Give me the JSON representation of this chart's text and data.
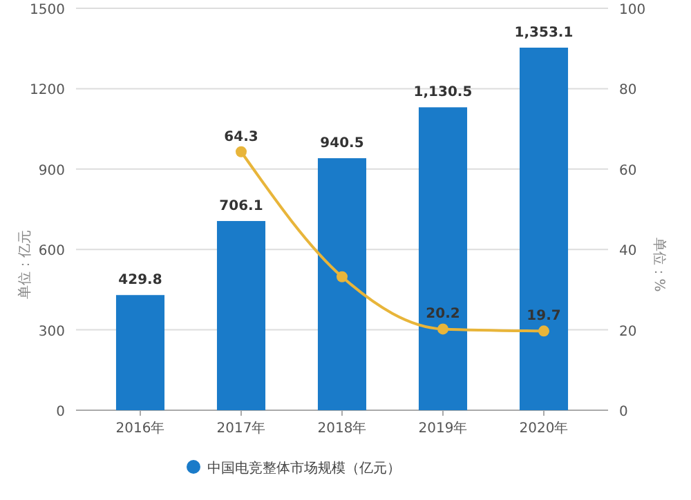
{
  "chart_data": {
    "type": "bar",
    "categories": [
      "2016年",
      "2017年",
      "2018年",
      "2019年",
      "2020年"
    ],
    "ylabel": "单位：亿元",
    "y2label": "单位：%",
    "ylim": [
      0,
      1500
    ],
    "yticks": [
      0,
      300,
      600,
      900,
      1200,
      1500
    ],
    "y2lim": [
      0,
      100
    ],
    "y2ticks": [
      0,
      20,
      40,
      60,
      80,
      100
    ],
    "grid": "y",
    "legend": "bottom",
    "marker": "circle",
    "series": [
      {
        "name": "中国电竞整体市场规模（亿元）",
        "color": "#1a7bc9",
        "values": [
          429.8,
          706.1,
          940.5,
          1130.5,
          1353.1
        ],
        "value_labels": [
          "429.8",
          "706.1",
          "940.5",
          "1,130.5",
          "1,353.1"
        ]
      },
      {
        "type": "line",
        "axis": "y2",
        "color": "#e8b53a",
        "values": [
          null,
          64.3,
          33.2,
          20.2,
          19.7
        ],
        "value_labels": [
          null,
          "64.3",
          null,
          "20.2",
          "19.7"
        ]
      }
    ]
  }
}
